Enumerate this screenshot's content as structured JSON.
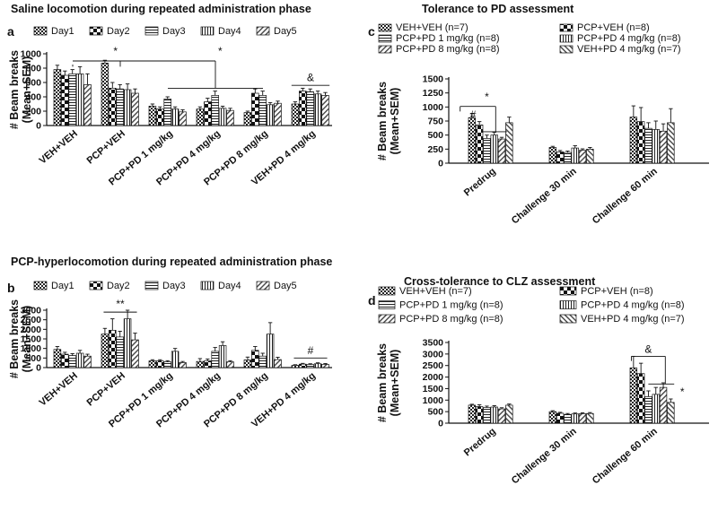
{
  "chart_data": [
    {
      "id": "a",
      "panel_label": "a",
      "type": "bar",
      "title": "Saline locomotion during repeated administration phase",
      "ylabel": "# Beam breaks\n(Mean+SEM)",
      "ylim": [
        0,
        1000
      ],
      "yticks": [
        0,
        200,
        400,
        600,
        800,
        1000
      ],
      "categories": [
        "VEH+VEH",
        "PCP+VEH",
        "PCP+PD 1 mg/kg",
        "PCP+PD 4 mg/kg",
        "PCP+PD 8 mg/kg",
        "VEH+PD 4 mg/kg"
      ],
      "series": [
        {
          "name": "Day1",
          "pattern": "check",
          "values": [
            780,
            870,
            270,
            230,
            180,
            300
          ],
          "errors": [
            60,
            40,
            30,
            30,
            20,
            30
          ]
        },
        {
          "name": "Day2",
          "pattern": "checkbig",
          "values": [
            700,
            520,
            230,
            330,
            450,
            480
          ],
          "errors": [
            60,
            80,
            30,
            50,
            60,
            40
          ]
        },
        {
          "name": "Day3",
          "pattern": "hlines",
          "values": [
            720,
            510,
            370,
            420,
            420,
            470
          ],
          "errors": [
            60,
            60,
            30,
            60,
            60,
            40
          ]
        },
        {
          "name": "Day4",
          "pattern": "vlines",
          "values": [
            720,
            500,
            230,
            240,
            290,
            440
          ],
          "errors": [
            100,
            80,
            30,
            30,
            30,
            40
          ]
        },
        {
          "name": "Day5",
          "pattern": "diag",
          "values": [
            570,
            450,
            190,
            210,
            310,
            420
          ],
          "errors": [
            150,
            60,
            30,
            30,
            30,
            40
          ]
        }
      ],
      "annotations": [
        {
          "text": "*",
          "cat": 0.9,
          "yv": 990
        },
        {
          "text": "*",
          "cat": 3.1,
          "yv": 990
        },
        {
          "text": "&",
          "cat": 5.0,
          "yv": 620
        }
      ]
    },
    {
      "id": "b",
      "panel_label": "b",
      "type": "bar",
      "title": "PCP-hyperlocomotion during repeated administration phase",
      "ylabel": "# Beam breaks\n(Mean+SEM)",
      "ylim": [
        0,
        3000
      ],
      "yticks": [
        0,
        500,
        1000,
        1500,
        2000,
        2500,
        3000
      ],
      "categories": [
        "VEH+VEH",
        "PCP+VEH",
        "PCP+PD 1 mg/kg",
        "PCP+PD 4 mg/kg",
        "PCP+PD 8 mg/kg",
        "VEH+PD 4 mg/kg"
      ],
      "series": [
        {
          "name": "Day1",
          "pattern": "check",
          "values": [
            950,
            1750,
            350,
            320,
            400,
            120
          ],
          "errors": [
            150,
            300,
            60,
            150,
            150,
            30
          ]
        },
        {
          "name": "Day2",
          "pattern": "checkbig",
          "values": [
            700,
            1950,
            350,
            350,
            900,
            180
          ],
          "errors": [
            100,
            600,
            60,
            100,
            200,
            40
          ]
        },
        {
          "name": "Day3",
          "pattern": "hlines",
          "values": [
            630,
            1600,
            300,
            850,
            600,
            160
          ],
          "errors": [
            100,
            300,
            60,
            200,
            150,
            40
          ]
        },
        {
          "name": "Day4",
          "pattern": "vlines",
          "values": [
            750,
            2550,
            850,
            1150,
            1750,
            200
          ],
          "errors": [
            150,
            450,
            150,
            200,
            600,
            50
          ]
        },
        {
          "name": "Day5",
          "pattern": "diag",
          "values": [
            600,
            1450,
            260,
            300,
            420,
            170
          ],
          "errors": [
            100,
            350,
            60,
            60,
            120,
            40
          ]
        }
      ],
      "annotations": [
        {
          "text": "**",
          "cat": 1.0,
          "yv": 3150
        },
        {
          "text": "#",
          "cat": 5.0,
          "yv": 700
        }
      ]
    },
    {
      "id": "c",
      "panel_label": "c",
      "type": "bar",
      "title": "Tolerance to PD assessment",
      "ylabel": "# Beam breaks\n(Mean+SEM)",
      "ylim": [
        0,
        1500
      ],
      "yticks": [
        0,
        250,
        500,
        750,
        1000,
        1250,
        1500
      ],
      "categories": [
        "Predrug",
        "Challenge 30 min",
        "Challenge 60 min"
      ],
      "series": [
        {
          "name": "VEH+VEH (n=7)",
          "pattern": "check",
          "values": [
            810,
            280,
            820
          ],
          "errors": [
            70,
            20,
            200
          ]
        },
        {
          "name": "PCP+VEH (n=8)",
          "pattern": "checkbig",
          "values": [
            680,
            200,
            740
          ],
          "errors": [
            60,
            25,
            250
          ]
        },
        {
          "name": "PCP+PD 1 mg/kg (n=8)",
          "pattern": "hlines",
          "values": [
            440,
            190,
            620
          ],
          "errors": [
            60,
            25,
            100
          ]
        },
        {
          "name": "PCP+PD 4 mg/kg (n=8)",
          "pattern": "vlines",
          "values": [
            500,
            270,
            600
          ],
          "errors": [
            50,
            40,
            150
          ]
        },
        {
          "name": "PCP+PD 8 mg/kg (n=8)",
          "pattern": "diag",
          "values": [
            430,
            230,
            570
          ],
          "errors": [
            30,
            25,
            130
          ]
        },
        {
          "name": "VEH+PD 4 mg/kg (n=7)",
          "pattern": "antidiag",
          "values": [
            720,
            250,
            720
          ],
          "errors": [
            100,
            30,
            250
          ]
        }
      ],
      "annotations": [
        {
          "text": "*",
          "cat": -0.05,
          "yv": 1120
        },
        {
          "text": "#",
          "cat": -0.22,
          "yv": 800
        }
      ]
    },
    {
      "id": "d",
      "panel_label": "d",
      "type": "bar",
      "title": "Cross-tolerance to CLZ assessment",
      "ylabel": "# Beam breaks\n(Mean+SEM)",
      "ylim": [
        0,
        3500
      ],
      "yticks": [
        0,
        500,
        1000,
        1500,
        2000,
        2500,
        3000,
        3500
      ],
      "categories": [
        "Predrug",
        "Challenge 30 min",
        "Challenge 60 min"
      ],
      "series": [
        {
          "name": "VEH+VEH (n=7)",
          "pattern": "check",
          "values": [
            780,
            500,
            2400
          ],
          "errors": [
            40,
            40,
            500
          ]
        },
        {
          "name": "PCP+VEH (n=8)",
          "pattern": "checkbig",
          "values": [
            720,
            430,
            2150
          ],
          "errors": [
            80,
            40,
            450
          ]
        },
        {
          "name": "PCP+PD 1 mg/kg (n=8)",
          "pattern": "hlines",
          "values": [
            680,
            380,
            1150
          ],
          "errors": [
            60,
            40,
            250
          ]
        },
        {
          "name": "PCP+PD 4 mg/kg (n=8)",
          "pattern": "vlines",
          "values": [
            700,
            400,
            1250
          ],
          "errors": [
            60,
            40,
            300
          ]
        },
        {
          "name": "PCP+PD 8 mg/kg (n=8)",
          "pattern": "diag",
          "values": [
            620,
            410,
            1550
          ],
          "errors": [
            50,
            40,
            200
          ]
        },
        {
          "name": "VEH+PD 4 mg/kg (n=7)",
          "pattern": "antidiag",
          "values": [
            780,
            420,
            900
          ],
          "errors": [
            50,
            40,
            150
          ]
        }
      ],
      "annotations": [
        {
          "text": "&",
          "cat": 1.95,
          "yv": 3050
        },
        {
          "text": "*",
          "cat": 2.37,
          "yv": 1200
        }
      ]
    }
  ]
}
